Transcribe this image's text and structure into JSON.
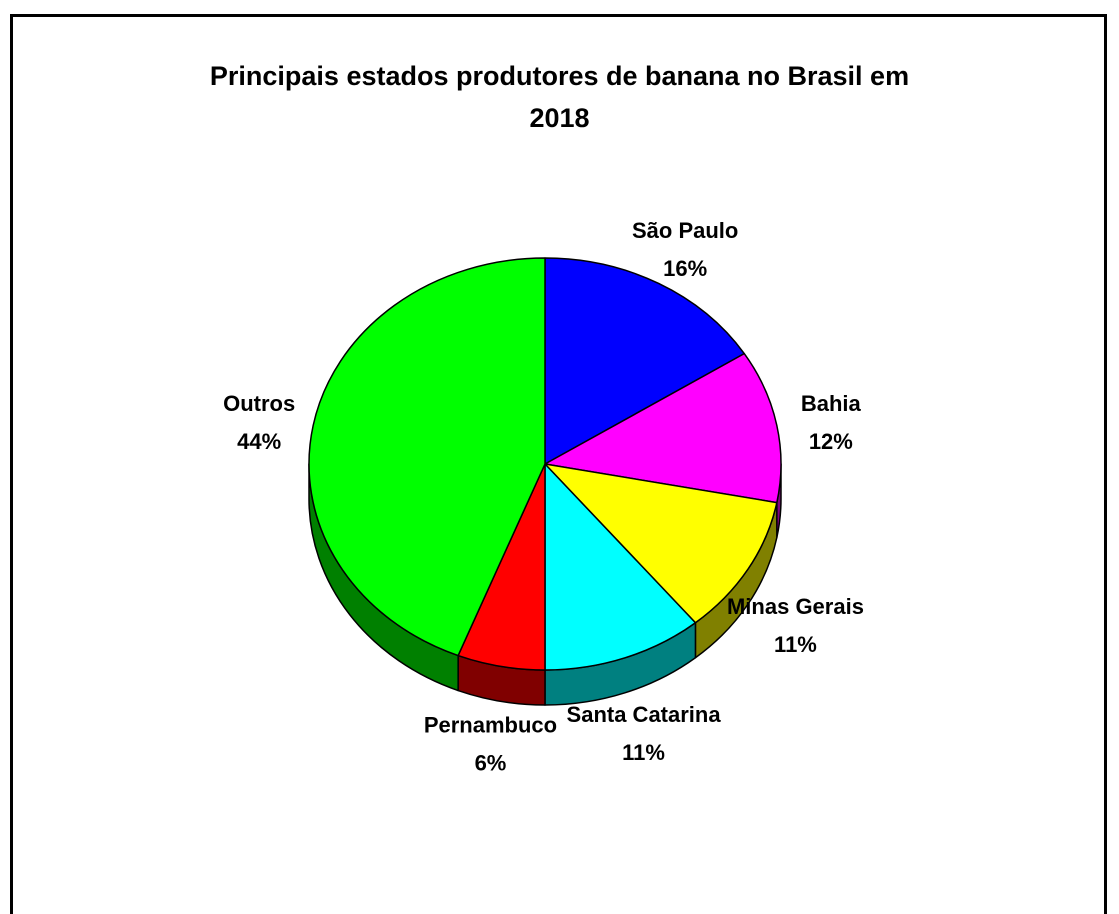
{
  "chart_data": {
    "type": "pie",
    "title_line1": "Principais estados produtores de banana no Brasil em",
    "title_line2": "2018",
    "title": "Principais estados produtores de banana no Brasil em 2018",
    "slices": [
      {
        "label": "São Paulo",
        "value": 16,
        "pct_label": "16%",
        "color": "#0000ff",
        "side_color": "#000080"
      },
      {
        "label": "Bahia",
        "value": 12,
        "pct_label": "12%",
        "color": "#ff00ff",
        "side_color": "#800080"
      },
      {
        "label": "Minas Gerais",
        "value": 11,
        "pct_label": "11%",
        "color": "#ffff00",
        "side_color": "#808000"
      },
      {
        "label": "Santa Catarina",
        "value": 11,
        "pct_label": "11%",
        "color": "#00ffff",
        "side_color": "#008080"
      },
      {
        "label": "Pernambuco",
        "value": 6,
        "pct_label": "6%",
        "color": "#ff0000",
        "side_color": "#800000"
      },
      {
        "label": "Outros",
        "value": 44,
        "pct_label": "44%",
        "color": "#00ff00",
        "side_color": "#008000"
      }
    ]
  }
}
